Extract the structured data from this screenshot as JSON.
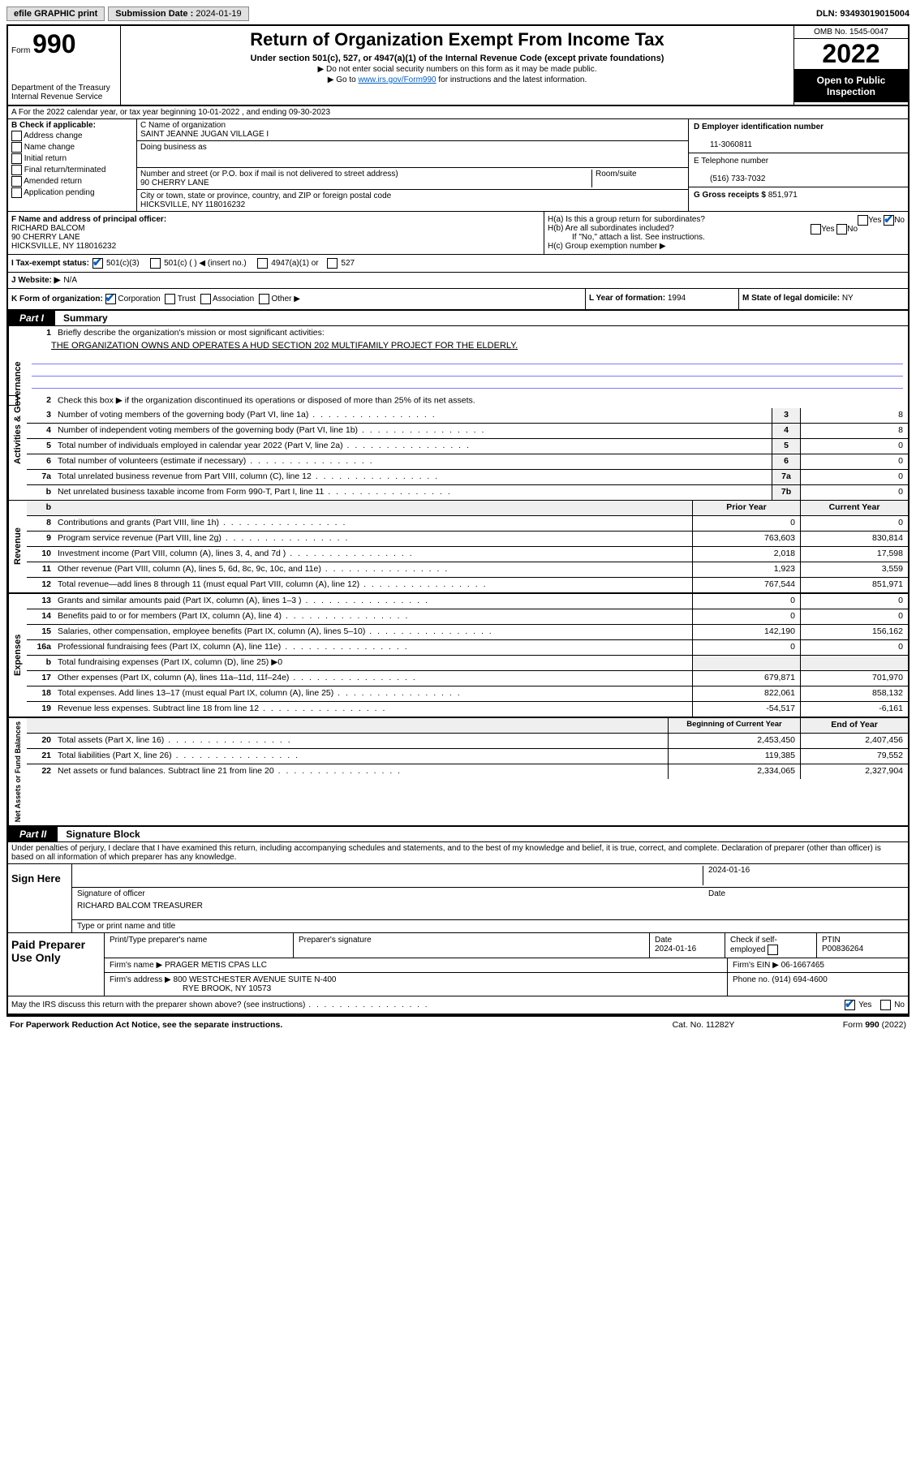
{
  "topbar": {
    "efile": "efile GRAPHIC print",
    "sub_label": "Submission Date :",
    "sub_date": "2024-01-19",
    "dln_label": "DLN:",
    "dln": "93493019015004"
  },
  "header": {
    "form_label": "Form",
    "form_num": "990",
    "dept": "Department of the Treasury",
    "irs": "Internal Revenue Service",
    "title": "Return of Organization Exempt From Income Tax",
    "sub1": "Under section 501(c), 527, or 4947(a)(1) of the Internal Revenue Code (except private foundations)",
    "sub2": "▶ Do not enter social security numbers on this form as it may be made public.",
    "sub3_a": "▶ Go to ",
    "sub3_link": "www.irs.gov/Form990",
    "sub3_b": " for instructions and the latest information.",
    "omb": "OMB No. 1545-0047",
    "year": "2022",
    "open": "Open to Public Inspection"
  },
  "line_a": "A For the 2022 calendar year, or tax year beginning 10-01-2022   , and ending 09-30-2023",
  "col_b": {
    "label": "B Check if applicable:",
    "opts": [
      "Address change",
      "Name change",
      "Initial return",
      "Final return/terminated",
      "Amended return",
      "Application pending"
    ]
  },
  "col_c": {
    "label": "C Name of organization",
    "name": "SAINT JEANNE JUGAN VILLAGE I",
    "dba_label": "Doing business as",
    "addr_label": "Number and street (or P.O. box if mail is not delivered to street address)",
    "room_label": "Room/suite",
    "addr": "90 CHERRY LANE",
    "city_label": "City or town, state or province, country, and ZIP or foreign postal code",
    "city": "HICKSVILLE, NY  118016232"
  },
  "col_d": {
    "label": "D Employer identification number",
    "val": "11-3060811"
  },
  "col_e": {
    "label": "E Telephone number",
    "val": "(516) 733-7032"
  },
  "col_g": {
    "label": "G Gross receipts $",
    "val": "851,971"
  },
  "row_f": {
    "label": "F Name and address of principal officer:",
    "name": "RICHARD BALCOM",
    "addr1": "90 CHERRY LANE",
    "addr2": "HICKSVILLE, NY  118016232"
  },
  "row_h": {
    "ha": "H(a)  Is this a group return for subordinates?",
    "hb": "H(b)  Are all subordinates included?",
    "hb_note": "If \"No,\" attach a list. See instructions.",
    "hc": "H(c)  Group exemption number ▶",
    "yes": "Yes",
    "no": "No"
  },
  "row_i": {
    "label": "I  Tax-exempt status:",
    "o1": "501(c)(3)",
    "o2": "501(c) (  ) ◀ (insert no.)",
    "o3": "4947(a)(1) or",
    "o4": "527"
  },
  "row_j": {
    "label": "J  Website: ▶",
    "val": "N/A"
  },
  "row_k": {
    "label": "K Form of organization:",
    "o1": "Corporation",
    "o2": "Trust",
    "o3": "Association",
    "o4": "Other ▶"
  },
  "row_l": {
    "label": "L Year of formation:",
    "val": "1994"
  },
  "row_m": {
    "label": "M State of legal domicile:",
    "val": "NY"
  },
  "part1": {
    "tab": "Part I",
    "title": "Summary"
  },
  "summary": {
    "q1": "Briefly describe the organization's mission or most significant activities:",
    "mission": "THE ORGANIZATION OWNS AND OPERATES A HUD SECTION 202 MULTIFAMILY PROJECT FOR THE ELDERLY.",
    "q2": "Check this box ▶        if the organization discontinued its operations or disposed of more than 25% of its net assets.",
    "rows_gov": [
      {
        "n": "3",
        "t": "Number of voting members of the governing body (Part VI, line 1a)",
        "box": "3",
        "v": "8"
      },
      {
        "n": "4",
        "t": "Number of independent voting members of the governing body (Part VI, line 1b)",
        "box": "4",
        "v": "8"
      },
      {
        "n": "5",
        "t": "Total number of individuals employed in calendar year 2022 (Part V, line 2a)",
        "box": "5",
        "v": "0"
      },
      {
        "n": "6",
        "t": "Total number of volunteers (estimate if necessary)",
        "box": "6",
        "v": "0"
      },
      {
        "n": "7a",
        "t": "Total unrelated business revenue from Part VIII, column (C), line 12",
        "box": "7a",
        "v": "0"
      },
      {
        "n": "b",
        "t": "Net unrelated business taxable income from Form 990-T, Part I, line 11",
        "box": "7b",
        "v": "0"
      }
    ],
    "hdr_prior": "Prior Year",
    "hdr_curr": "Current Year",
    "rows_rev": [
      {
        "n": "8",
        "t": "Contributions and grants (Part VIII, line 1h)",
        "p": "0",
        "c": "0"
      },
      {
        "n": "9",
        "t": "Program service revenue (Part VIII, line 2g)",
        "p": "763,603",
        "c": "830,814"
      },
      {
        "n": "10",
        "t": "Investment income (Part VIII, column (A), lines 3, 4, and 7d )",
        "p": "2,018",
        "c": "17,598"
      },
      {
        "n": "11",
        "t": "Other revenue (Part VIII, column (A), lines 5, 6d, 8c, 9c, 10c, and 11e)",
        "p": "1,923",
        "c": "3,559"
      },
      {
        "n": "12",
        "t": "Total revenue—add lines 8 through 11 (must equal Part VIII, column (A), line 12)",
        "p": "767,544",
        "c": "851,971"
      }
    ],
    "rows_exp": [
      {
        "n": "13",
        "t": "Grants and similar amounts paid (Part IX, column (A), lines 1–3 )",
        "p": "0",
        "c": "0"
      },
      {
        "n": "14",
        "t": "Benefits paid to or for members (Part IX, column (A), line 4)",
        "p": "0",
        "c": "0"
      },
      {
        "n": "15",
        "t": "Salaries, other compensation, employee benefits (Part IX, column (A), lines 5–10)",
        "p": "142,190",
        "c": "156,162"
      },
      {
        "n": "16a",
        "t": "Professional fundraising fees (Part IX, column (A), line 11e)",
        "p": "0",
        "c": "0"
      },
      {
        "n": "b",
        "t": "Total fundraising expenses (Part IX, column (D), line 25) ▶0",
        "p": "",
        "c": ""
      },
      {
        "n": "17",
        "t": "Other expenses (Part IX, column (A), lines 11a–11d, 11f–24e)",
        "p": "679,871",
        "c": "701,970"
      },
      {
        "n": "18",
        "t": "Total expenses. Add lines 13–17 (must equal Part IX, column (A), line 25)",
        "p": "822,061",
        "c": "858,132"
      },
      {
        "n": "19",
        "t": "Revenue less expenses. Subtract line 18 from line 12",
        "p": "-54,517",
        "c": "-6,161"
      }
    ],
    "hdr_beg": "Beginning of Current Year",
    "hdr_end": "End of Year",
    "rows_net": [
      {
        "n": "20",
        "t": "Total assets (Part X, line 16)",
        "p": "2,453,450",
        "c": "2,407,456"
      },
      {
        "n": "21",
        "t": "Total liabilities (Part X, line 26)",
        "p": "119,385",
        "c": "79,552"
      },
      {
        "n": "22",
        "t": "Net assets or fund balances. Subtract line 21 from line 20",
        "p": "2,334,065",
        "c": "2,327,904"
      }
    ],
    "vtab_gov": "Activities & Governance",
    "vtab_rev": "Revenue",
    "vtab_exp": "Expenses",
    "vtab_net": "Net Assets or Fund Balances"
  },
  "part2": {
    "tab": "Part II",
    "title": "Signature Block"
  },
  "sig": {
    "decl": "Under penalties of perjury, I declare that I have examined this return, including accompanying schedules and statements, and to the best of my knowledge and belief, it is true, correct, and complete. Declaration of preparer (other than officer) is based on all information of which preparer has any knowledge.",
    "sign_here": "Sign Here",
    "sig_officer": "Signature of officer",
    "date_lbl": "Date",
    "date": "2024-01-16",
    "name": "RICHARD BALCOM  TREASURER",
    "name_lbl": "Type or print name and title"
  },
  "paid": {
    "label": "Paid Preparer Use Only",
    "h1": "Print/Type preparer's name",
    "h2": "Preparer's signature",
    "h3": "Date",
    "h3v": "2024-01-16",
    "h4": "Check        if self-employed",
    "h5": "PTIN",
    "h5v": "P00836264",
    "firm_lbl": "Firm's name     ▶",
    "firm": "PRAGER METIS CPAS LLC",
    "ein_lbl": "Firm's EIN ▶",
    "ein": "06-1667465",
    "addr_lbl": "Firm's address ▶",
    "addr1": "800 WESTCHESTER AVENUE SUITE N-400",
    "addr2": "RYE BROOK, NY  10573",
    "phone_lbl": "Phone no.",
    "phone": "(914) 694-4600"
  },
  "footer": {
    "q": "May the IRS discuss this return with the preparer shown above? (see instructions)",
    "yes": "Yes",
    "no": "No",
    "pra": "For Paperwork Reduction Act Notice, see the separate instructions.",
    "cat": "Cat. No. 11282Y",
    "form": "Form 990 (2022)"
  }
}
